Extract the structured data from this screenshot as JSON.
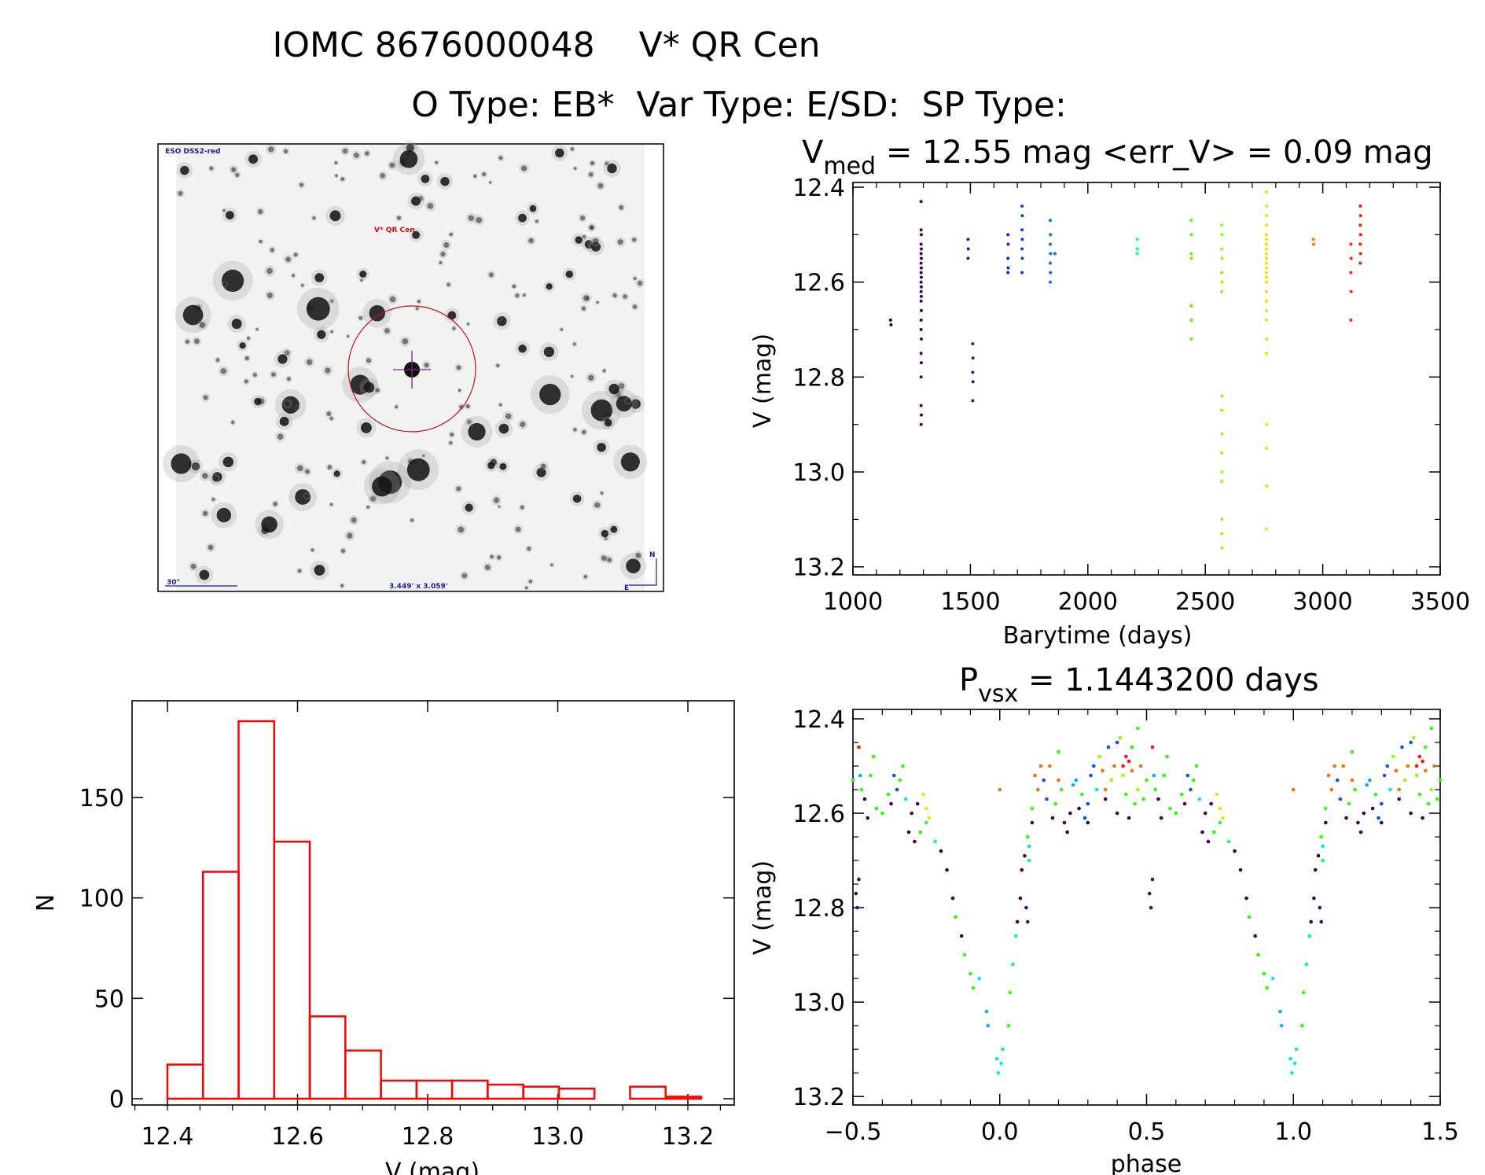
{
  "header": {
    "title_line1": "IOMC 8676000048    V* QR Cen",
    "title_line2": "O Type: EB*  Var Type: E/SD:  SP Type:"
  },
  "finder": {
    "survey_label": "ESO DSS2-red",
    "target_label": "V* QR Cen",
    "scale_label": "30\"",
    "fov_label": "3.449' x 3.059'",
    "north_label": "N",
    "east_label": "E"
  },
  "colors": {
    "hist": "#ff0000",
    "axis": "#000000",
    "circle": "#c01020",
    "cross": "#8a1a8a"
  },
  "chart_data": [
    {
      "type": "scatter",
      "name": "light-curve",
      "title_main": "V",
      "title_sub": "med",
      "title_rest": " = 12.55 mag <err_V> = 0.09 mag",
      "xlabel": "Barytime (days)",
      "ylabel": "V (mag)",
      "xlim": [
        1000,
        3500
      ],
      "ylim": [
        12.39,
        13.217
      ],
      "y_inverted": true,
      "xticks": [
        "1000",
        "1500",
        "2000",
        "2500",
        "3000",
        "3500"
      ],
      "xtick_values": [
        1000,
        1500,
        2000,
        2500,
        3000,
        3500
      ],
      "yticks": [
        "12.4",
        "12.6",
        "12.8",
        "13.0",
        "13.2"
      ],
      "ytick_values": [
        12.4,
        12.6,
        12.8,
        13.0,
        13.2
      ],
      "color_time_range": [
        1160,
        3170
      ],
      "points": [
        [
          1160,
          12.68
        ],
        [
          1162,
          12.69
        ],
        [
          1290,
          12.43
        ],
        [
          1290,
          12.49
        ],
        [
          1291,
          12.5
        ],
        [
          1290,
          12.52
        ],
        [
          1291,
          12.53
        ],
        [
          1290,
          12.54
        ],
        [
          1291,
          12.55
        ],
        [
          1290,
          12.56
        ],
        [
          1291,
          12.57
        ],
        [
          1290,
          12.58
        ],
        [
          1291,
          12.59
        ],
        [
          1290,
          12.6
        ],
        [
          1291,
          12.61
        ],
        [
          1290,
          12.62
        ],
        [
          1291,
          12.63
        ],
        [
          1290,
          12.64
        ],
        [
          1291,
          12.66
        ],
        [
          1290,
          12.68
        ],
        [
          1290,
          12.7
        ],
        [
          1291,
          12.72
        ],
        [
          1290,
          12.75
        ],
        [
          1291,
          12.77
        ],
        [
          1290,
          12.8
        ],
        [
          1290,
          12.86
        ],
        [
          1291,
          12.88
        ],
        [
          1290,
          12.9
        ],
        [
          1490,
          12.51
        ],
        [
          1491,
          12.53
        ],
        [
          1490,
          12.55
        ],
        [
          1510,
          12.73
        ],
        [
          1511,
          12.76
        ],
        [
          1510,
          12.79
        ],
        [
          1511,
          12.81
        ],
        [
          1510,
          12.85
        ],
        [
          1660,
          12.5
        ],
        [
          1661,
          12.52
        ],
        [
          1660,
          12.55
        ],
        [
          1661,
          12.57
        ],
        [
          1660,
          12.58
        ],
        [
          1720,
          12.44
        ],
        [
          1721,
          12.46
        ],
        [
          1720,
          12.49
        ],
        [
          1721,
          12.51
        ],
        [
          1720,
          12.53
        ],
        [
          1721,
          12.55
        ],
        [
          1720,
          12.58
        ],
        [
          1840,
          12.47
        ],
        [
          1841,
          12.5
        ],
        [
          1840,
          12.52
        ],
        [
          1841,
          12.54
        ],
        [
          1840,
          12.56
        ],
        [
          1841,
          12.58
        ],
        [
          1840,
          12.6
        ],
        [
          1860,
          12.54
        ],
        [
          2210,
          12.51
        ],
        [
          2211,
          12.53
        ],
        [
          2210,
          12.54
        ],
        [
          2440,
          12.47
        ],
        [
          2441,
          12.5
        ],
        [
          2440,
          12.54
        ],
        [
          2441,
          12.55
        ],
        [
          2440,
          12.65
        ],
        [
          2441,
          12.68
        ],
        [
          2440,
          12.72
        ],
        [
          2570,
          12.48
        ],
        [
          2571,
          12.5
        ],
        [
          2570,
          12.53
        ],
        [
          2571,
          12.55
        ],
        [
          2570,
          12.58
        ],
        [
          2571,
          12.6
        ],
        [
          2570,
          12.62
        ],
        [
          2571,
          12.84
        ],
        [
          2570,
          12.87
        ],
        [
          2571,
          12.92
        ],
        [
          2570,
          12.96
        ],
        [
          2571,
          13.0
        ],
        [
          2570,
          13.02
        ],
        [
          2571,
          13.1
        ],
        [
          2570,
          13.13
        ],
        [
          2571,
          13.16
        ],
        [
          2760,
          12.41
        ],
        [
          2761,
          12.44
        ],
        [
          2760,
          12.46
        ],
        [
          2761,
          12.48
        ],
        [
          2760,
          12.5
        ],
        [
          2761,
          12.51
        ],
        [
          2760,
          12.52
        ],
        [
          2761,
          12.53
        ],
        [
          2760,
          12.54
        ],
        [
          2761,
          12.55
        ],
        [
          2760,
          12.56
        ],
        [
          2761,
          12.57
        ],
        [
          2760,
          12.58
        ],
        [
          2761,
          12.59
        ],
        [
          2760,
          12.6
        ],
        [
          2761,
          12.62
        ],
        [
          2760,
          12.64
        ],
        [
          2761,
          12.66
        ],
        [
          2760,
          12.68
        ],
        [
          2761,
          12.72
        ],
        [
          2760,
          12.75
        ],
        [
          2761,
          12.9
        ],
        [
          2760,
          12.95
        ],
        [
          2761,
          13.03
        ],
        [
          2760,
          13.12
        ],
        [
          2960,
          12.51
        ],
        [
          2961,
          12.52
        ],
        [
          3120,
          12.52
        ],
        [
          3121,
          12.55
        ],
        [
          3120,
          12.58
        ],
        [
          3121,
          12.62
        ],
        [
          3120,
          12.68
        ],
        [
          3160,
          12.44
        ],
        [
          3161,
          12.46
        ],
        [
          3160,
          12.48
        ],
        [
          3161,
          12.5
        ],
        [
          3160,
          12.52
        ],
        [
          3161,
          12.54
        ],
        [
          3160,
          12.56
        ]
      ]
    },
    {
      "type": "scatter",
      "name": "phase-curve",
      "title_main": "P",
      "title_sub": "vsx",
      "title_rest": " = 1.1443200 days",
      "xlabel": "phase",
      "ylabel": "V (mag)",
      "xlim": [
        -0.5,
        1.5
      ],
      "ylim": [
        12.38,
        13.218
      ],
      "y_inverted": true,
      "xticks": [
        "−0.5",
        "0.0",
        "0.5",
        "1.0",
        "1.5"
      ],
      "xtick_values": [
        -0.5,
        0.0,
        0.5,
        1.0,
        1.5
      ],
      "yticks": [
        "12.4",
        "12.6",
        "12.8",
        "13.0",
        "13.2"
      ],
      "ytick_values": [
        12.4,
        12.6,
        12.8,
        13.0,
        13.2
      ],
      "note": "points [phase, V, time-color fraction], plotted at phase-1, phase, phase+1",
      "points": [
        [
          0.75,
          12.62,
          0.55
        ],
        [
          0.78,
          12.66,
          0.55
        ],
        [
          0.8,
          12.68,
          0.05
        ],
        [
          0.82,
          12.72,
          0.05
        ],
        [
          0.84,
          12.78,
          0.05
        ],
        [
          0.85,
          12.82,
          0.6
        ],
        [
          0.87,
          12.86,
          0.05
        ],
        [
          0.88,
          12.9,
          0.6
        ],
        [
          0.9,
          12.94,
          0.6
        ],
        [
          0.91,
          12.97,
          0.6
        ],
        [
          0.93,
          12.95,
          0.45
        ],
        [
          0.955,
          13.02,
          0.4
        ],
        [
          0.96,
          13.05,
          0.4
        ],
        [
          0.99,
          13.12,
          0.47
        ],
        [
          0.995,
          13.15,
          0.47
        ],
        [
          0.005,
          13.13,
          0.47
        ],
        [
          0.01,
          13.1,
          0.55
        ],
        [
          0.03,
          13.05,
          0.6
        ],
        [
          0.035,
          12.98,
          0.6
        ],
        [
          0.045,
          12.92,
          0.55
        ],
        [
          0.055,
          12.86,
          0.5
        ],
        [
          0.06,
          12.83,
          0.05
        ],
        [
          0.07,
          12.78,
          0.05
        ],
        [
          0.09,
          12.8,
          0.1
        ],
        [
          0.095,
          12.83,
          0.1
        ],
        [
          0.075,
          12.72,
          0.05
        ],
        [
          0.085,
          12.69,
          0.05
        ],
        [
          0.095,
          12.65,
          0.6
        ],
        [
          0.1,
          12.67,
          0.45
        ],
        [
          0.1,
          12.7,
          0.55
        ],
        [
          0.11,
          12.62,
          0.05
        ],
        [
          0.11,
          12.59,
          0.6
        ],
        [
          0.68,
          12.57,
          0.45
        ],
        [
          0.69,
          12.64,
          0.05
        ],
        [
          0.7,
          12.6,
          0.05
        ],
        [
          0.71,
          12.66,
          0.05
        ],
        [
          0.72,
          12.58,
          0.05
        ],
        [
          0.74,
          12.56,
          0.8
        ],
        [
          0.75,
          12.59,
          0.8
        ],
        [
          0.76,
          12.61,
          0.8
        ],
        [
          0.73,
          12.64,
          0.6
        ],
        [
          0.66,
          12.53,
          0.6
        ],
        [
          0.67,
          12.5,
          0.6
        ],
        [
          0.65,
          12.55,
          0.3
        ],
        [
          0.64,
          12.52,
          0.3
        ],
        [
          0.63,
          12.58,
          0.05
        ],
        [
          0.62,
          12.56,
          0.6
        ],
        [
          0.6,
          12.6,
          0.6
        ],
        [
          0.12,
          12.52,
          0.9
        ],
        [
          0.13,
          12.55,
          0.9
        ],
        [
          0.14,
          12.5,
          0.9
        ],
        [
          0.15,
          12.53,
          0.3
        ],
        [
          0.16,
          12.57,
          0.3
        ],
        [
          0.17,
          12.5,
          0.9
        ],
        [
          0.18,
          12.61,
          0.05
        ],
        [
          0.19,
          12.58,
          0.6
        ],
        [
          0.2,
          12.47,
          0.6
        ],
        [
          0.21,
          12.55,
          0.6
        ],
        [
          0.22,
          12.62,
          0.05
        ],
        [
          0.23,
          12.64,
          0.05
        ],
        [
          0.24,
          12.6,
          0.05
        ],
        [
          0.25,
          12.54,
          0.4
        ],
        [
          0.26,
          12.53,
          0.4
        ],
        [
          0.27,
          12.59,
          0.05
        ],
        [
          0.28,
          12.56,
          0.6
        ],
        [
          0.29,
          12.61,
          0.3
        ],
        [
          0.3,
          12.58,
          0.3
        ],
        [
          0.31,
          12.52,
          0.3
        ],
        [
          0.32,
          12.5,
          0.3
        ],
        [
          0.33,
          12.55,
          0.45
        ],
        [
          0.34,
          12.48,
          0.7
        ],
        [
          0.35,
          12.51,
          0.9
        ],
        [
          0.36,
          12.57,
          0.05
        ],
        [
          0.37,
          12.46,
          0.3
        ],
        [
          0.38,
          12.53,
          0.7
        ],
        [
          0.39,
          12.5,
          0.9
        ],
        [
          0.4,
          12.6,
          0.05
        ],
        [
          0.41,
          12.44,
          0.7
        ],
        [
          0.42,
          12.52,
          0.7
        ],
        [
          0.43,
          12.56,
          0.6
        ],
        [
          0.44,
          12.49,
          1.0
        ],
        [
          0.45,
          12.51,
          0.9
        ],
        [
          0.46,
          12.58,
          0.6
        ],
        [
          0.47,
          12.55,
          0.7
        ],
        [
          0.48,
          12.5,
          0.9
        ],
        [
          0.49,
          12.57,
          0.6
        ],
        [
          0.5,
          12.53,
          0.6
        ],
        [
          0.51,
          12.77,
          0.1
        ],
        [
          0.515,
          12.8,
          0.1
        ],
        [
          0.52,
          12.74,
          0.1
        ],
        [
          0.52,
          12.46,
          1.0
        ],
        [
          0.525,
          12.52,
          0.4
        ],
        [
          0.53,
          12.55,
          0.6
        ],
        [
          0.54,
          12.57,
          0.05
        ],
        [
          0.55,
          12.61,
          0.05
        ],
        [
          0.56,
          12.52,
          0.6
        ],
        [
          0.57,
          12.48,
          0.6
        ],
        [
          0.58,
          12.59,
          0.6
        ],
        [
          -0.0,
          12.55,
          0.9
        ],
        [
          0.47,
          12.42,
          0.6
        ],
        [
          0.45,
          12.46,
          0.6
        ],
        [
          0.43,
          12.48,
          1.0
        ],
        [
          0.42,
          12.5,
          1.0
        ],
        [
          0.4,
          12.45,
          0.3
        ],
        [
          0.36,
          12.55,
          0.9
        ],
        [
          0.2,
          12.53,
          0.9
        ],
        [
          0.3,
          12.62,
          0.05
        ],
        [
          0.44,
          12.61,
          0.05
        ]
      ]
    },
    {
      "type": "bar",
      "name": "histogram",
      "xlabel": "V (mag)",
      "ylabel": "N",
      "xlim": [
        12.34,
        13.28
      ],
      "ylim": [
        0,
        192
      ],
      "xticks": [
        "12.4",
        "12.6",
        "12.8",
        "13.0",
        "13.2"
      ],
      "xtick_values": [
        12.4,
        12.6,
        12.8,
        13.0,
        13.2
      ],
      "yticks": [
        "0",
        "50",
        "100",
        "150"
      ],
      "ytick_values": [
        0,
        50,
        100,
        150
      ],
      "bin_start": 12.4,
      "bin_width": 0.0547,
      "values": [
        17,
        113,
        188,
        128,
        41,
        24,
        9,
        9,
        9,
        7,
        6,
        5,
        0,
        6,
        1
      ]
    }
  ]
}
